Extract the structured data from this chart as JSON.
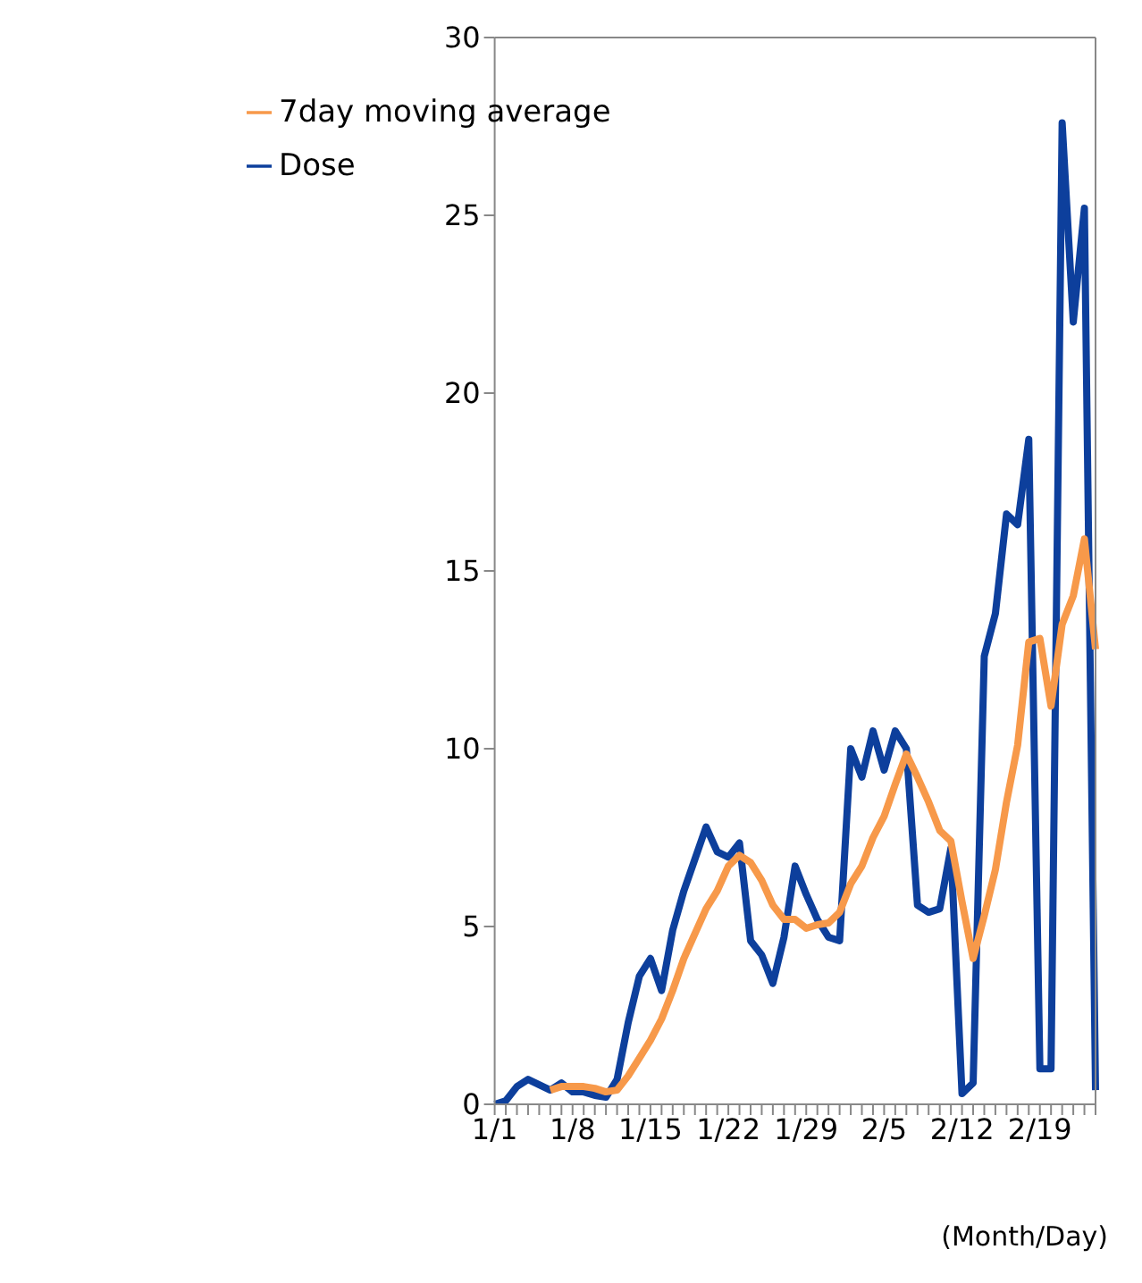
{
  "chart_data": {
    "type": "line",
    "xlabel": "(Month/Day)",
    "categories": [
      "1/1",
      null,
      null,
      null,
      null,
      null,
      null,
      "1/8",
      null,
      null,
      null,
      null,
      null,
      null,
      "1/15",
      null,
      null,
      null,
      null,
      null,
      null,
      "1/22",
      null,
      null,
      null,
      null,
      null,
      null,
      "1/29",
      null,
      null,
      null,
      null,
      null,
      null,
      "2/5",
      null,
      null,
      null,
      null,
      null,
      null,
      "2/12",
      null,
      null,
      null,
      null,
      null,
      null,
      "2/19",
      null,
      null,
      null,
      null,
      null
    ],
    "series": [
      {
        "name": "Dose",
        "color": "#0d3f9c",
        "values": [
          0,
          0.1,
          0.5,
          0.7,
          0.55,
          0.4,
          0.6,
          0.35,
          0.35,
          0.25,
          0.2,
          0.7,
          2.3,
          3.6,
          4.1,
          3.2,
          4.9,
          6.0,
          6.9,
          7.8,
          7.1,
          6.95,
          7.35,
          4.6,
          4.2,
          3.4,
          4.7,
          6.7,
          5.9,
          5.2,
          4.7,
          4.6,
          10.0,
          9.2,
          10.5,
          9.4,
          10.5,
          10.0,
          5.6,
          5.4,
          5.5,
          7.2,
          0.3,
          0.6,
          12.6,
          13.8,
          16.6,
          16.3,
          18.7,
          1.0,
          1.0,
          27.6,
          22.0,
          25.2,
          0.4
        ]
      },
      {
        "name": "7day moving average",
        "color": "#f7994a",
        "values": [
          null,
          null,
          null,
          null,
          null,
          0.4,
          0.5,
          0.5,
          0.5,
          0.45,
          0.35,
          0.4,
          0.8,
          1.3,
          1.8,
          2.4,
          3.2,
          4.1,
          4.8,
          5.5,
          6.0,
          6.7,
          7.0,
          6.8,
          6.3,
          5.6,
          5.2,
          5.2,
          4.95,
          5.05,
          5.1,
          5.4,
          6.2,
          6.7,
          7.5,
          8.1,
          9.0,
          9.85,
          9.2,
          8.5,
          7.7,
          7.4,
          5.7,
          4.1,
          5.3,
          6.6,
          8.5,
          10.1,
          13.0,
          13.1,
          11.2,
          13.5,
          14.3,
          15.9,
          12.8
        ]
      }
    ],
    "ylim": [
      0,
      30
    ],
    "yticks": [
      0,
      5,
      10,
      15,
      20,
      25,
      30
    ],
    "legend": "top left",
    "marker": "none",
    "line_style": "solid"
  }
}
